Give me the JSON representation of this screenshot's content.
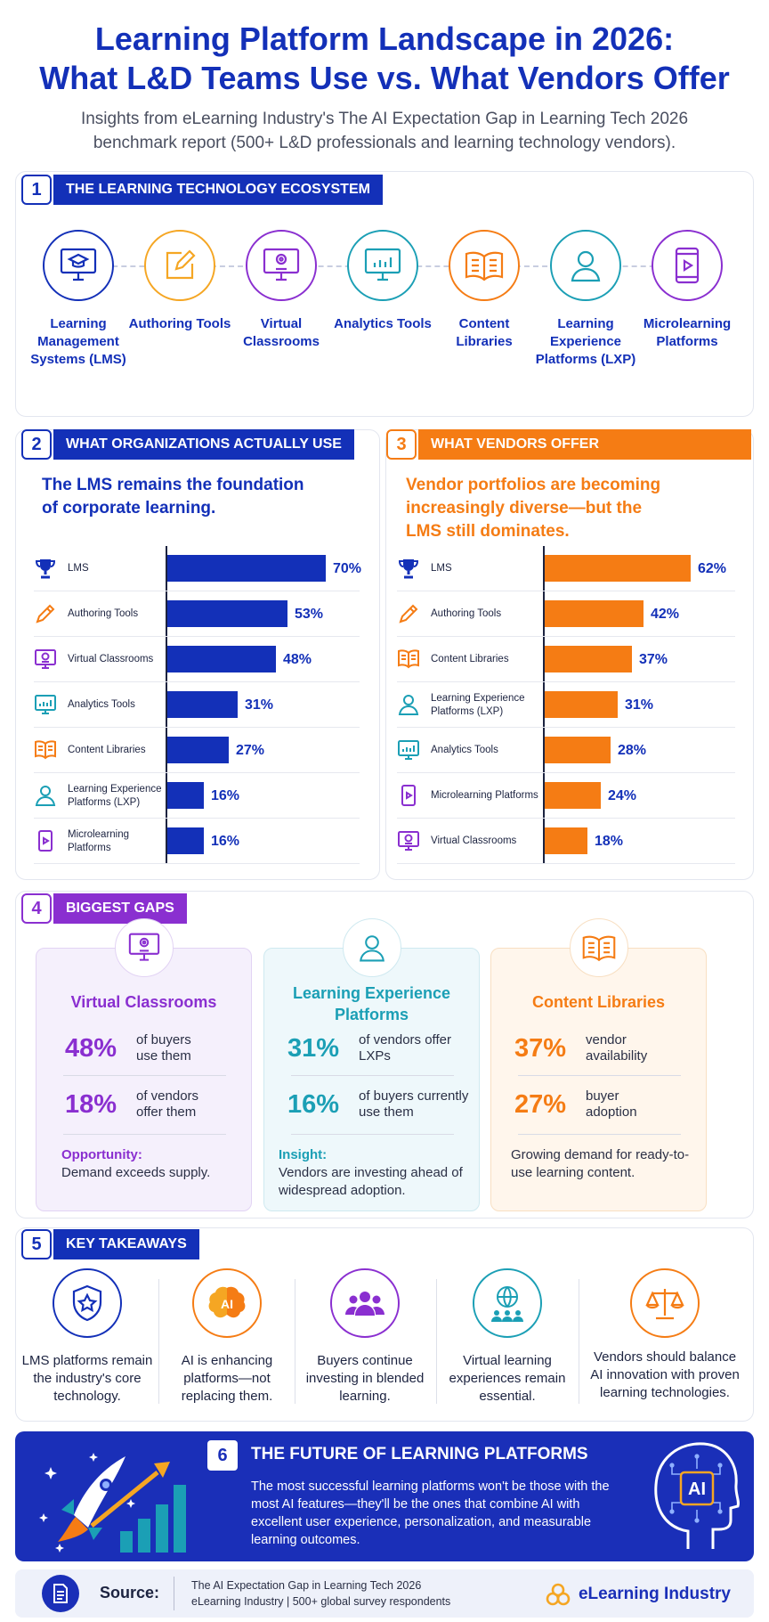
{
  "header": {
    "title_line1": "Learning Platform Landscape in 2026:",
    "title_line2": "What L&D Teams Use vs. What Vendors Offer",
    "subtitle_line1": "Insights from eLearning Industry's The AI Expectation Gap in Learning Tech 2026",
    "subtitle_line2": "benchmark report (500+ L&D professionals and learning technology vendors)."
  },
  "colors": {
    "blue": "#1330b8",
    "orange": "#f57c14",
    "purple": "#8a2fd0",
    "teal": "#1b9fb5"
  },
  "section1": {
    "number": "1",
    "label": "THE LEARNING TECHNOLOGY ECOSYSTEM",
    "items": [
      {
        "label": "Learning Management Systems (LMS)",
        "icon": "graduation-monitor-icon"
      },
      {
        "label": "Authoring Tools",
        "icon": "pencil-note-icon"
      },
      {
        "label": "Virtual Classrooms",
        "icon": "webcam-monitor-icon"
      },
      {
        "label": "Analytics Tools",
        "icon": "bar-chart-monitor-icon"
      },
      {
        "label": "Content Libraries",
        "icon": "open-book-icon"
      },
      {
        "label": "Learning Experience Platforms (LXP)",
        "icon": "user-icon"
      },
      {
        "label": "Microlearning Platforms",
        "icon": "phone-play-icon"
      }
    ]
  },
  "section2": {
    "number": "2",
    "label": "WHAT ORGANIZATIONS ACTUALLY USE",
    "intro_line1": "The LMS remains the foundation",
    "intro_line2": "of corporate learning.",
    "chart_data": {
      "type": "bar",
      "orientation": "horizontal",
      "categories": [
        "LMS",
        "Authoring Tools",
        "Virtual Classrooms",
        "Analytics Tools",
        "Content Libraries",
        "Learning Experience Platforms (LXP)",
        "Microlearning Platforms"
      ],
      "values": [
        70,
        53,
        48,
        31,
        27,
        16,
        16
      ],
      "labels": [
        "70%",
        "53%",
        "48%",
        "31%",
        "27%",
        "16%",
        "16%"
      ],
      "icons": [
        "trophy-icon",
        "pencil-icon",
        "webcam-monitor-icon",
        "bar-chart-monitor-icon",
        "open-book-icon",
        "user-icon",
        "phone-play-icon"
      ],
      "icon_colors": [
        "#1330b8",
        "#f57c14",
        "#8a2fd0",
        "#1b9fb5",
        "#f57c14",
        "#1b9fb5",
        "#8a2fd0"
      ],
      "bar_color": "#1330b8",
      "xlim": [
        0,
        70
      ]
    }
  },
  "section3": {
    "number": "3",
    "label": "WHAT VENDORS OFFER",
    "intro_line1": "Vendor portfolios are becoming",
    "intro_line2": "increasingly diverse—but the",
    "intro_line3": "LMS still dominates.",
    "chart_data": {
      "type": "bar",
      "orientation": "horizontal",
      "categories": [
        "LMS",
        "Authoring Tools",
        "Content Libraries",
        "Learning Experience Platforms (LXP)",
        "Analytics Tools",
        "Microlearning Platforms",
        "Virtual Classrooms"
      ],
      "values": [
        62,
        42,
        37,
        31,
        28,
        24,
        18
      ],
      "labels": [
        "62%",
        "42%",
        "37%",
        "31%",
        "28%",
        "24%",
        "18%"
      ],
      "icons": [
        "trophy-icon",
        "pencil-icon",
        "open-book-icon",
        "user-icon",
        "bar-chart-monitor-icon",
        "phone-play-icon",
        "webcam-monitor-icon"
      ],
      "icon_colors": [
        "#1330b8",
        "#f57c14",
        "#f57c14",
        "#1b9fb5",
        "#1b9fb5",
        "#8a2fd0",
        "#8a2fd0"
      ],
      "bar_color": "#f57c14",
      "xlim": [
        0,
        62
      ]
    }
  },
  "section4": {
    "number": "4",
    "label": "BIGGEST GAPS",
    "cards": [
      {
        "title": "Virtual Classrooms",
        "icon": "webcam-monitor-icon",
        "stat1_value": "48%",
        "stat1_text": "of buyers use them",
        "stat2_value": "18%",
        "stat2_text": "of vendors offer them",
        "note_label": "Opportunity:",
        "note_text": "Demand exceeds supply."
      },
      {
        "title": "Learning Experience Platforms",
        "icon": "user-icon",
        "stat1_value": "31%",
        "stat1_text": "of vendors offer LXPs",
        "stat2_value": "16%",
        "stat2_text": "of buyers currently use them",
        "note_label": "Insight:",
        "note_text": "Vendors are investing ahead of widespread adoption."
      },
      {
        "title": "Content Libraries",
        "icon": "open-book-icon",
        "stat1_value": "37%",
        "stat1_text": "vendor availability",
        "stat2_value": "27%",
        "stat2_text": "buyer adoption",
        "note_label": "",
        "note_text": "Growing demand for ready-to-use learning content."
      }
    ]
  },
  "section5": {
    "number": "5",
    "label": "KEY TAKEAWAYS",
    "items": [
      {
        "text": "LMS platforms remain the industry's core technology.",
        "icon": "shield-star-icon"
      },
      {
        "text": "AI is enhancing platforms—not replacing them.",
        "icon": "ai-brain-icon"
      },
      {
        "text": "Buyers continue investing in blended learning.",
        "icon": "group-people-icon"
      },
      {
        "text": "Virtual learning experiences remain essential.",
        "icon": "globe-people-icon"
      },
      {
        "text": "Vendors should balance AI innovation with proven learning technologies.",
        "icon": "balance-scale-icon"
      }
    ]
  },
  "section6": {
    "number": "6",
    "title": "THE FUTURE OF LEARNING PLATFORMS",
    "body": "The most successful learning platforms won't be those with the most AI features—they'll be the ones that combine AI with excellent user experience, personalization, and measurable learning outcomes.",
    "chip_text": "AI"
  },
  "footer": {
    "source_label": "Source:",
    "source_line1": "The AI Expectation Gap in Learning Tech 2026",
    "source_line2": "eLearning Industry | 500+ global survey respondents",
    "brand": "eLearning Industry"
  }
}
